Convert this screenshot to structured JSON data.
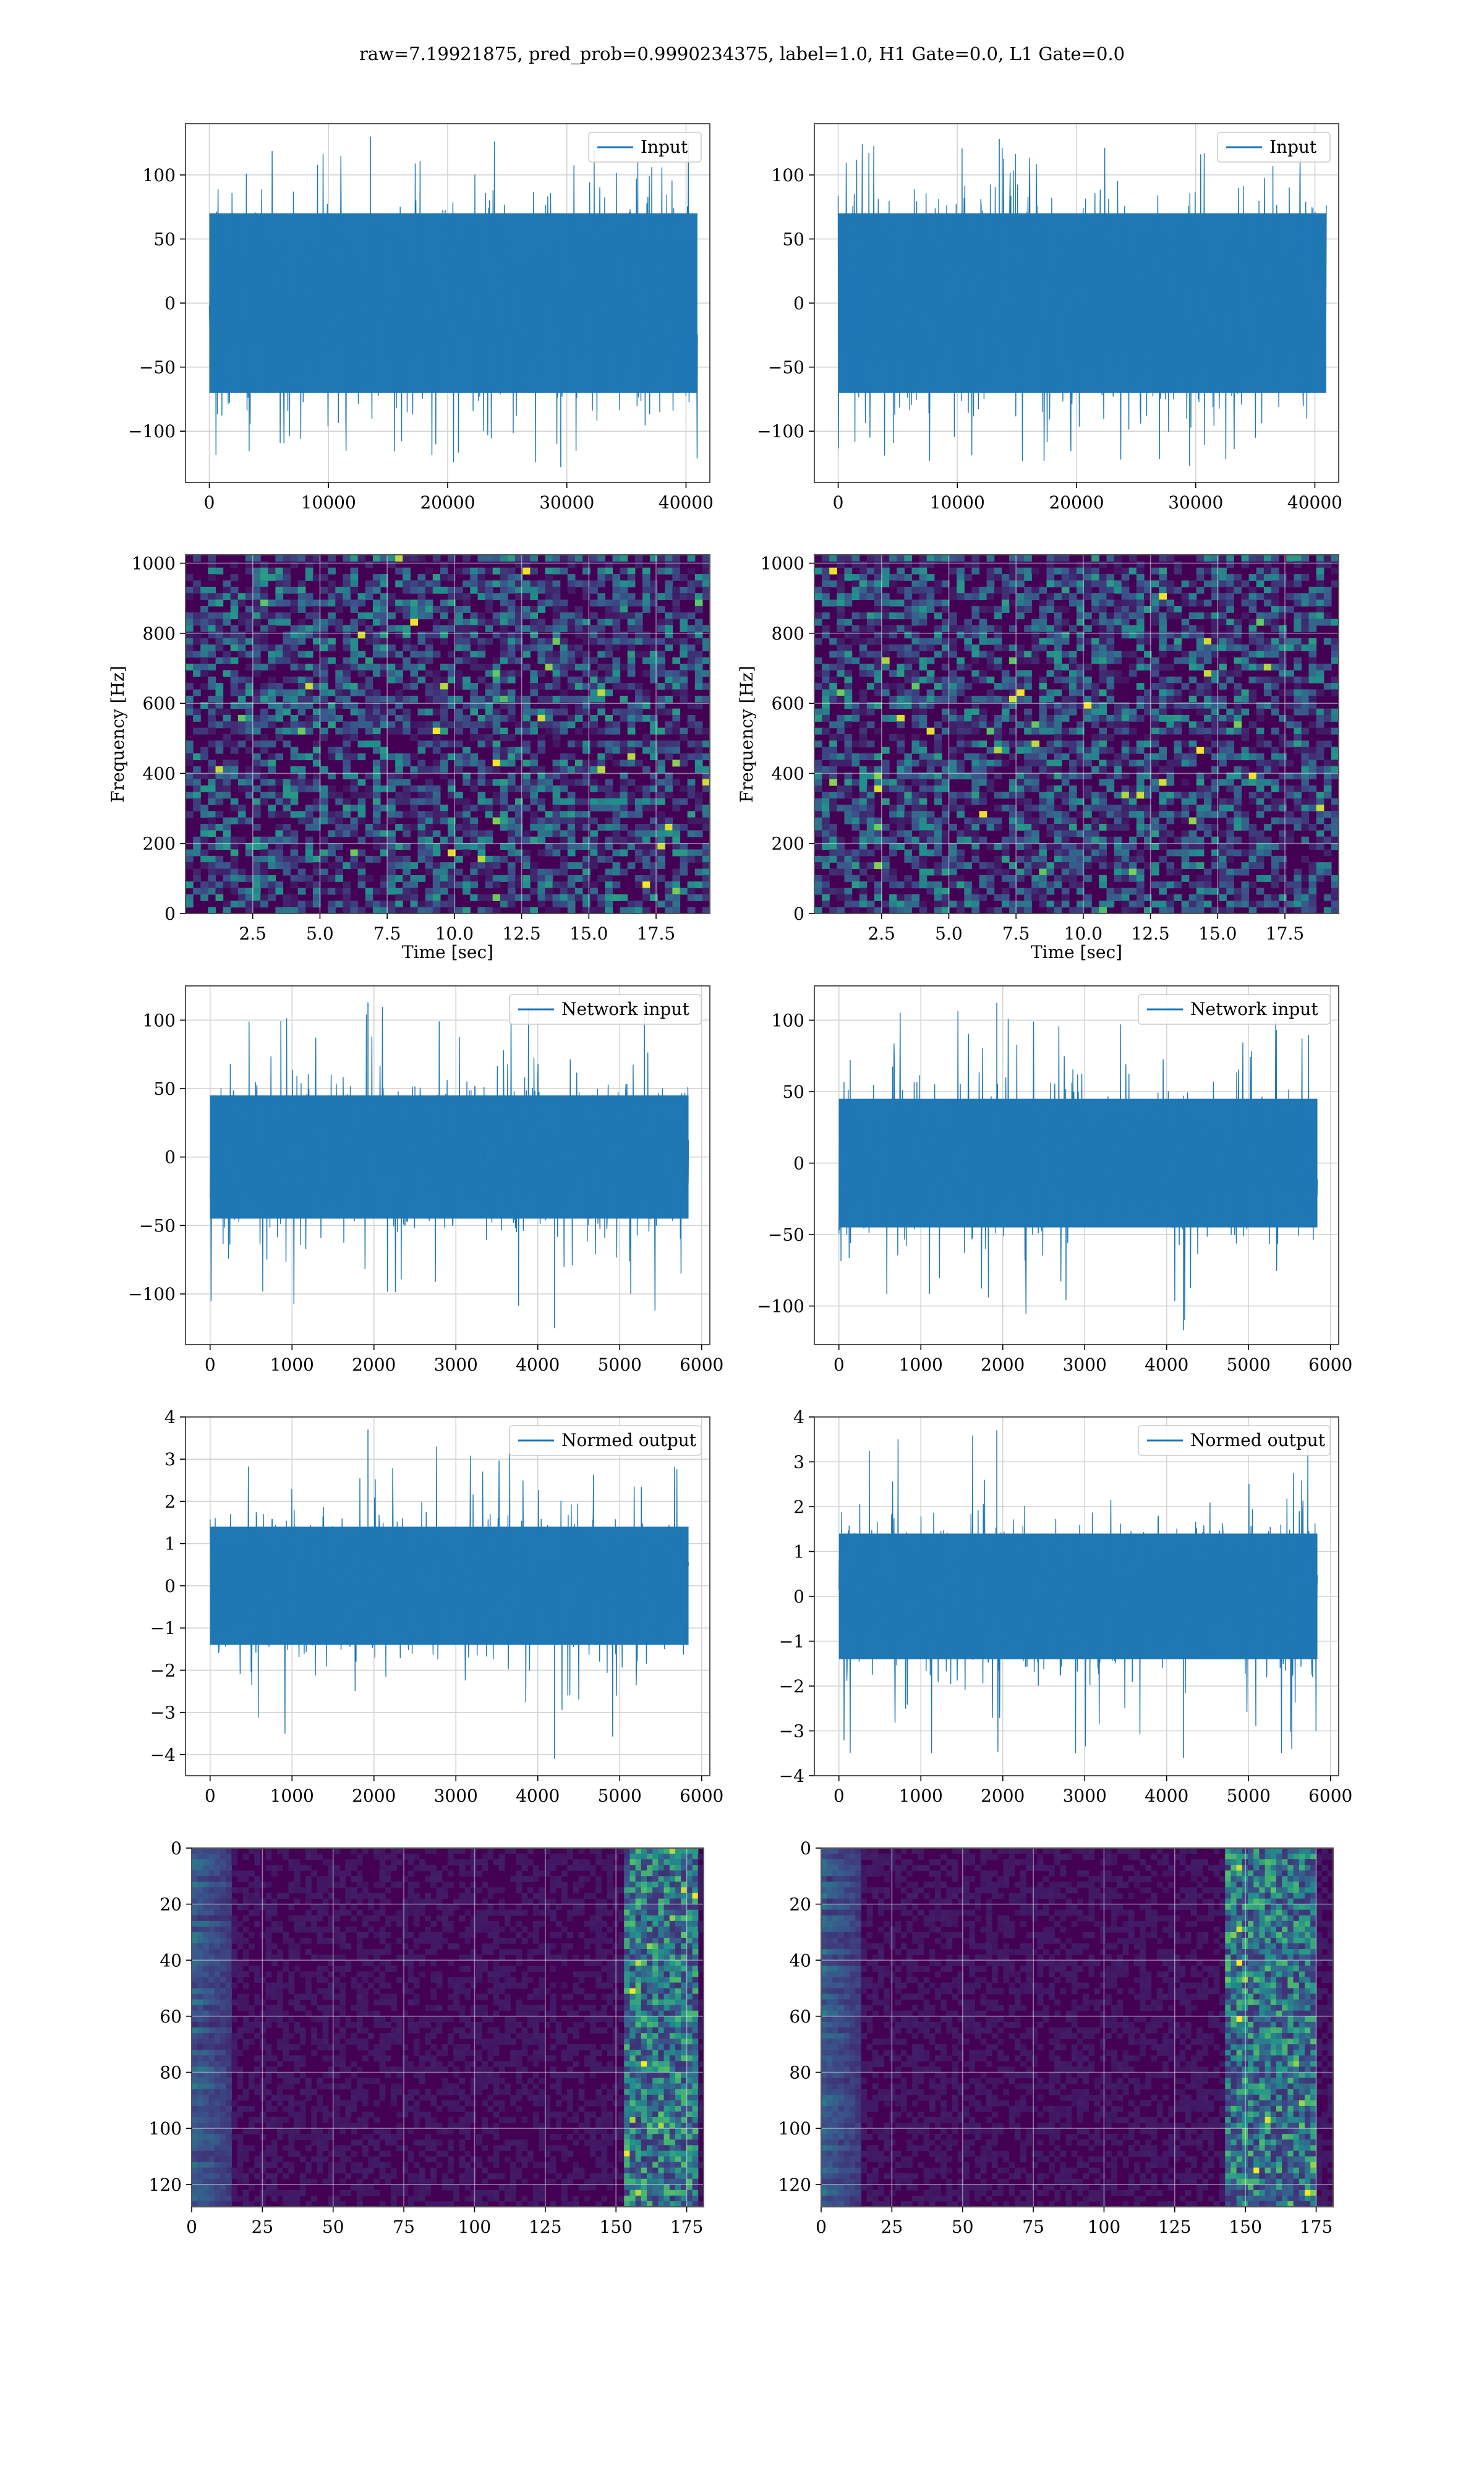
{
  "figure": {
    "suptitle": "raw=7.19921875, pred_prob=0.9990234375, label=1.0, H1 Gate=0.0, L1 Gate=0.0"
  },
  "colors": {
    "series": "#1f77b4",
    "grid": "#d3d3d3",
    "spine": "#555555",
    "viridis_low": "#440154",
    "viridis_mid": "#21918c",
    "viridis_high": "#fde725"
  },
  "chart_data": [
    {
      "id": "h1_input",
      "type": "line",
      "position": "row1-left",
      "series": [
        {
          "name": "Input",
          "envelope_min": -128,
          "envelope_max": 130,
          "bulk_low": -70,
          "bulk_high": 70,
          "n": 40960
        }
      ],
      "xlim": [
        -2000,
        42000
      ],
      "ylim": [
        -140,
        140
      ],
      "xticks": [
        0,
        10000,
        20000,
        30000,
        40000
      ],
      "xticklabels": [
        "0",
        "10000",
        "20000",
        "30000",
        "40000"
      ],
      "yticks": [
        100,
        50,
        0,
        -50,
        -100
      ],
      "yticklabels": [
        "100",
        "50",
        "0",
        "−50",
        "−100"
      ],
      "legend": "upper right",
      "grid": true,
      "xlabel": "",
      "ylabel": ""
    },
    {
      "id": "l1_input",
      "type": "line",
      "position": "row1-right",
      "series": [
        {
          "name": "Input",
          "envelope_min": -127,
          "envelope_max": 128,
          "bulk_low": -70,
          "bulk_high": 70,
          "n": 40960
        }
      ],
      "xlim": [
        -2000,
        42000
      ],
      "ylim": [
        -140,
        140
      ],
      "xticks": [
        0,
        10000,
        20000,
        30000,
        40000
      ],
      "xticklabels": [
        "0",
        "10000",
        "20000",
        "30000",
        "40000"
      ],
      "yticks": [
        100,
        50,
        0,
        -50,
        -100
      ],
      "yticklabels": [
        "100",
        "50",
        "0",
        "−50",
        "−100"
      ],
      "legend": "upper right",
      "grid": true,
      "xlabel": "",
      "ylabel": ""
    },
    {
      "id": "h1_spectrogram",
      "type": "heatmap",
      "position": "row2-left",
      "colormap": "viridis",
      "xlim": [
        0,
        19.5
      ],
      "ylim": [
        0,
        1024
      ],
      "xticks": [
        2.5,
        5.0,
        7.5,
        10.0,
        12.5,
        15.0,
        17.5
      ],
      "xticklabels": [
        "2.5",
        "5.0",
        "7.5",
        "10.0",
        "12.5",
        "15.0",
        "17.5"
      ],
      "yticks": [
        0,
        200,
        400,
        600,
        800,
        1000
      ],
      "yticklabels": [
        "0",
        "200",
        "400",
        "600",
        "800",
        "1000"
      ],
      "xlabel": "Time [sec]",
      "ylabel": "Frequency [Hz]",
      "grid": true,
      "dark_bands_hz": [
        500,
        1000
      ]
    },
    {
      "id": "l1_spectrogram",
      "type": "heatmap",
      "position": "row2-right",
      "colormap": "viridis",
      "xlim": [
        0,
        19.5
      ],
      "ylim": [
        0,
        1024
      ],
      "xticks": [
        2.5,
        5.0,
        7.5,
        10.0,
        12.5,
        15.0,
        17.5
      ],
      "xticklabels": [
        "2.5",
        "5.0",
        "7.5",
        "10.0",
        "12.5",
        "15.0",
        "17.5"
      ],
      "yticks": [
        0,
        200,
        400,
        600,
        800,
        1000
      ],
      "yticklabels": [
        "0",
        "200",
        "400",
        "600",
        "800",
        "1000"
      ],
      "xlabel": "Time [sec]",
      "ylabel": "Frequency [Hz]",
      "grid": true,
      "dark_bands_hz": [
        500,
        1000
      ]
    },
    {
      "id": "h1_network_input",
      "type": "line",
      "position": "row3-left",
      "series": [
        {
          "name": "Network input",
          "envelope_min": -125,
          "envelope_max": 113,
          "bulk_low": -45,
          "bulk_high": 45,
          "n": 5840
        }
      ],
      "xlim": [
        -300,
        6100
      ],
      "ylim": [
        -137,
        125
      ],
      "xticks": [
        0,
        1000,
        2000,
        3000,
        4000,
        5000,
        6000
      ],
      "xticklabels": [
        "0",
        "1000",
        "2000",
        "3000",
        "4000",
        "5000",
        "6000"
      ],
      "yticks": [
        100,
        50,
        0,
        -50,
        -100
      ],
      "yticklabels": [
        "100",
        "50",
        "0",
        "−50",
        "−100"
      ],
      "legend": "upper right",
      "grid": true,
      "xlabel": "",
      "ylabel": ""
    },
    {
      "id": "l1_network_input",
      "type": "line",
      "position": "row3-right",
      "series": [
        {
          "name": "Network input",
          "envelope_min": -117,
          "envelope_max": 112,
          "bulk_low": -45,
          "bulk_high": 45,
          "n": 5840
        }
      ],
      "xlim": [
        -300,
        6100
      ],
      "ylim": [
        -127,
        124
      ],
      "xticks": [
        0,
        1000,
        2000,
        3000,
        4000,
        5000,
        6000
      ],
      "xticklabels": [
        "0",
        "1000",
        "2000",
        "3000",
        "4000",
        "5000",
        "6000"
      ],
      "yticks": [
        100,
        50,
        0,
        -50,
        -100
      ],
      "yticklabels": [
        "100",
        "50",
        "0",
        "−50",
        "−100"
      ],
      "legend": "upper right",
      "grid": true,
      "xlabel": "",
      "ylabel": ""
    },
    {
      "id": "h1_normed_output",
      "type": "line",
      "position": "row4-left",
      "series": [
        {
          "name": "Normed output",
          "envelope_min": -4.1,
          "envelope_max": 3.7,
          "bulk_low": -1.4,
          "bulk_high": 1.4,
          "n": 5840
        }
      ],
      "xlim": [
        -300,
        6100
      ],
      "ylim": [
        -4.5,
        4.0
      ],
      "xticks": [
        0,
        1000,
        2000,
        3000,
        4000,
        5000,
        6000
      ],
      "xticklabels": [
        "0",
        "1000",
        "2000",
        "3000",
        "4000",
        "5000",
        "6000"
      ],
      "yticks": [
        4,
        3,
        2,
        1,
        0,
        -1,
        -2,
        -3,
        -4
      ],
      "yticklabels": [
        "4",
        "3",
        "2",
        "1",
        "0",
        "−1",
        "−2",
        "−3",
        "−4"
      ],
      "legend": "upper right",
      "grid": true,
      "xlabel": "",
      "ylabel": ""
    },
    {
      "id": "l1_normed_output",
      "type": "line",
      "position": "row4-right",
      "series": [
        {
          "name": "Normed output",
          "envelope_min": -3.6,
          "envelope_max": 3.7,
          "bulk_low": -1.4,
          "bulk_high": 1.4,
          "n": 5840
        }
      ],
      "xlim": [
        -300,
        6100
      ],
      "ylim": [
        -4.0,
        4.0
      ],
      "xticks": [
        0,
        1000,
        2000,
        3000,
        4000,
        5000,
        6000
      ],
      "xticklabels": [
        "0",
        "1000",
        "2000",
        "3000",
        "4000",
        "5000",
        "6000"
      ],
      "yticks": [
        4,
        3,
        2,
        1,
        0,
        -1,
        -2,
        -3,
        -4
      ],
      "yticklabels": [
        "4",
        "3",
        "2",
        "1",
        "0",
        "−1",
        "−2",
        "−3",
        "−4"
      ],
      "legend": "upper right",
      "grid": true,
      "xlabel": "",
      "ylabel": ""
    },
    {
      "id": "h1_feature_map",
      "type": "heatmap",
      "position": "row5-left",
      "colormap": "viridis",
      "xlim": [
        0,
        181
      ],
      "ylim": [
        128,
        0
      ],
      "xticks": [
        0,
        25,
        50,
        75,
        100,
        125,
        150,
        175
      ],
      "xticklabels": [
        "0",
        "25",
        "50",
        "75",
        "100",
        "125",
        "150",
        "175"
      ],
      "yticks": [
        0,
        20,
        40,
        60,
        80,
        100,
        120
      ],
      "yticklabels": [
        "0",
        "20",
        "40",
        "60",
        "80",
        "100",
        "120"
      ],
      "grid": true,
      "xlabel": "",
      "ylabel": "",
      "bright_columns": [
        160,
        178
      ]
    },
    {
      "id": "l1_feature_map",
      "type": "heatmap",
      "position": "row5-right",
      "colormap": "viridis",
      "xlim": [
        0,
        181
      ],
      "ylim": [
        128,
        0
      ],
      "xticks": [
        0,
        25,
        50,
        75,
        100,
        125,
        150,
        175
      ],
      "xticklabels": [
        "0",
        "25",
        "50",
        "75",
        "100",
        "125",
        "150",
        "175"
      ],
      "yticks": [
        0,
        20,
        40,
        60,
        80,
        100,
        120
      ],
      "yticklabels": [
        "0",
        "20",
        "40",
        "60",
        "80",
        "100",
        "120"
      ],
      "grid": true,
      "xlabel": "",
      "ylabel": "",
      "bright_columns": [
        150,
        175
      ]
    }
  ]
}
